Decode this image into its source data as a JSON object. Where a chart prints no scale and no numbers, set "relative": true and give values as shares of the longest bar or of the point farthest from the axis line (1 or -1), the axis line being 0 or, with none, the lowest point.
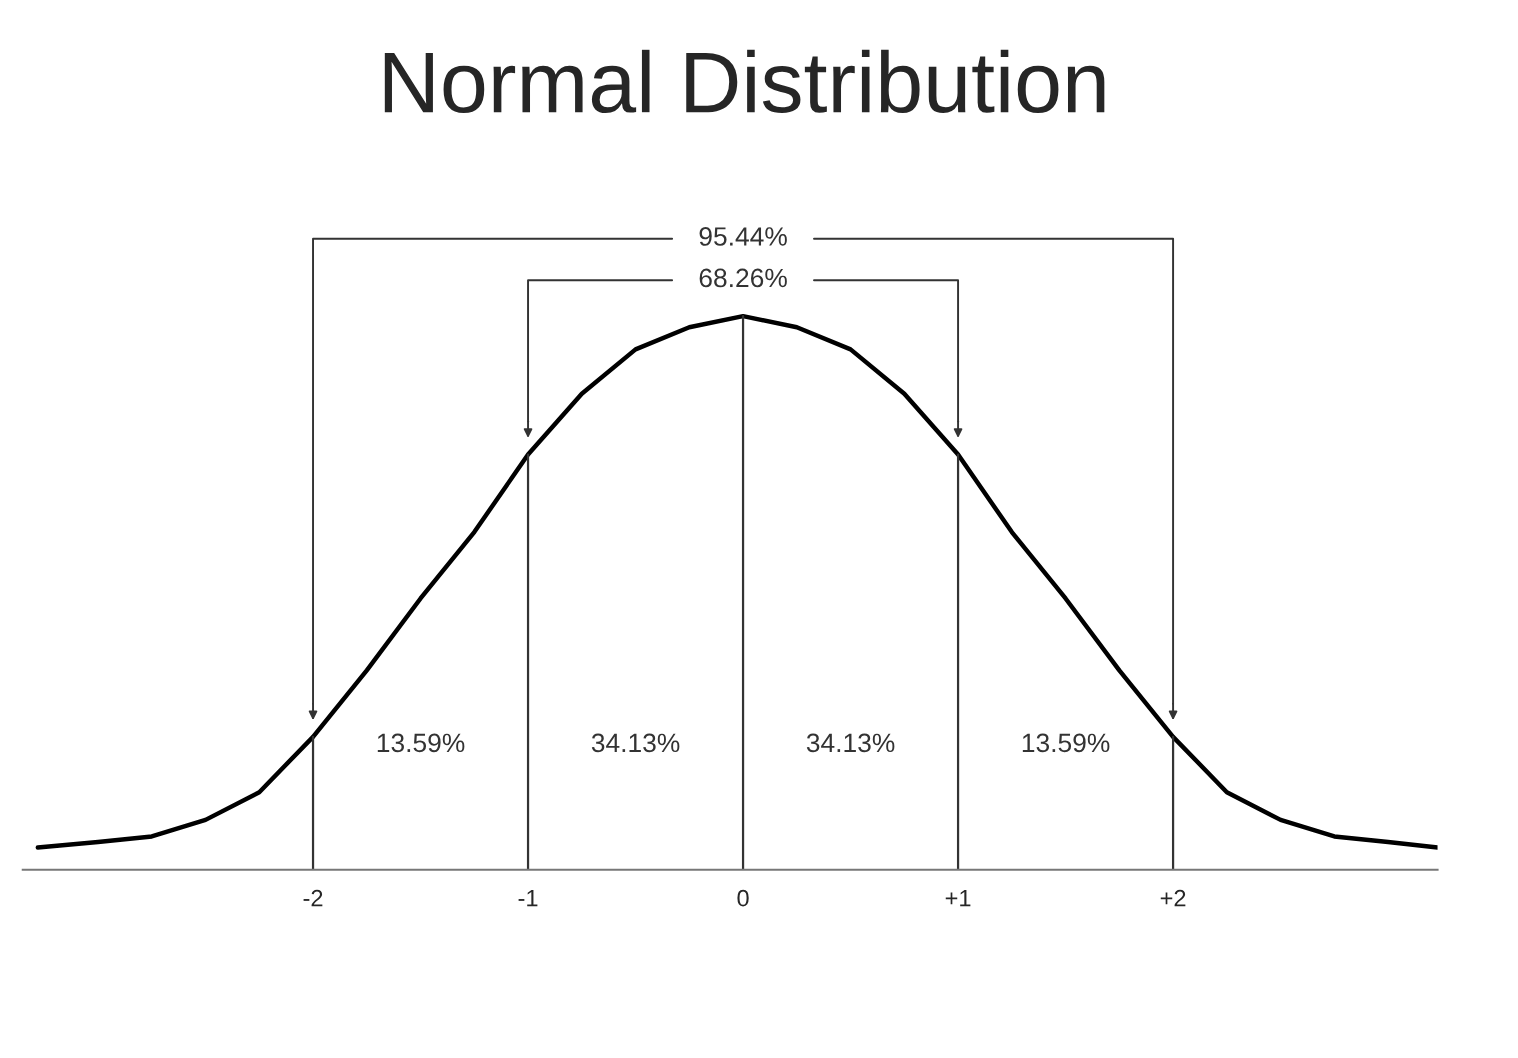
{
  "chart_data": {
    "type": "line",
    "title": "Normal Distribution",
    "relative": true,
    "x": [
      -3.28,
      -3.0,
      -2.75,
      -2.5,
      -2.25,
      -2.0,
      -1.75,
      -1.5,
      -1.25,
      -1.0,
      -0.75,
      -0.5,
      -0.25,
      0,
      0.25,
      0.5,
      0.75,
      1.0,
      1.25,
      1.5,
      1.75,
      2.0,
      2.25,
      2.5,
      2.75,
      3.0,
      3.23
    ],
    "series": [
      {
        "color": "#000000",
        "values": [
          0.04,
          0.05,
          0.06,
          0.09,
          0.14,
          0.24,
          0.36,
          0.49,
          0.61,
          0.75,
          0.86,
          0.94,
          0.98,
          1.0,
          0.98,
          0.94,
          0.86,
          0.75,
          0.61,
          0.49,
          0.36,
          0.24,
          0.14,
          0.09,
          0.06,
          0.05,
          0.04
        ]
      }
    ],
    "xlim": [
      -3.35,
      3.23
    ],
    "xticks": [
      {
        "value": -2,
        "label": "-2"
      },
      {
        "value": -1,
        "label": "-1"
      },
      0,
      {
        "value": 1,
        "label": "+1"
      },
      {
        "value": 2,
        "label": "+2"
      }
    ],
    "annotations": [
      "95.44%",
      "68.26%",
      "13.59%",
      "34.13%",
      "34.13%",
      "13.59%"
    ],
    "grid": "x",
    "legend": false
  }
}
